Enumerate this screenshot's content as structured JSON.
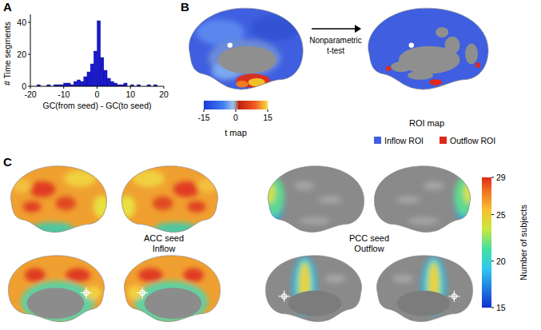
{
  "panel_labels": [
    "A",
    "B",
    "C"
  ],
  "chart_data": {
    "type": "histogram",
    "xlabel": "GC(from seed) - GC(to seed)",
    "ylabel": "# Time segments",
    "bins": [
      -18,
      -17,
      -16,
      -15,
      -14,
      -13,
      -12,
      -11,
      -10,
      -9,
      -8,
      -7,
      -6,
      -5,
      -4,
      -3,
      -2,
      -1,
      0,
      1,
      2,
      3,
      4,
      5,
      6,
      7,
      8,
      9,
      10,
      11,
      12,
      13,
      14,
      15,
      16,
      17,
      18
    ],
    "values": [
      1,
      0,
      0,
      1,
      0,
      1,
      1,
      1,
      2,
      2,
      1,
      3,
      4,
      3,
      6,
      9,
      14,
      22,
      41,
      18,
      10,
      5,
      3,
      2,
      1,
      1,
      2,
      0,
      1,
      0,
      1,
      0,
      0,
      1,
      0,
      1
    ],
    "color": "#1a1ad0",
    "xlim": [
      -20,
      20
    ],
    "ylim": [
      0,
      45
    ],
    "xticks": [
      -20,
      -10,
      0,
      10,
      20
    ],
    "yticks": [
      0,
      20,
      40
    ],
    "grid": false
  },
  "panel_b": {
    "arrow_text": [
      "Nonparametric",
      "t-test"
    ],
    "left_caption": "t map",
    "right_caption": "ROI map",
    "colorbar": {
      "range": [
        -15,
        15
      ],
      "ticks": [
        -15,
        0,
        15
      ]
    },
    "legend": [
      {
        "name": "Inflow ROI",
        "color": "#3f5fe0"
      },
      {
        "name": "Outflow ROI",
        "color": "#e0281e"
      }
    ]
  },
  "panel_c": {
    "groups": [
      {
        "lines": [
          "ACC seed",
          "Inflow"
        ]
      },
      {
        "lines": [
          "PCC seed",
          "Outflow"
        ]
      }
    ],
    "colorbar": {
      "title": "Number of subjects",
      "range": [
        15,
        29
      ],
      "ticks": [
        15,
        20,
        25,
        29
      ]
    }
  }
}
